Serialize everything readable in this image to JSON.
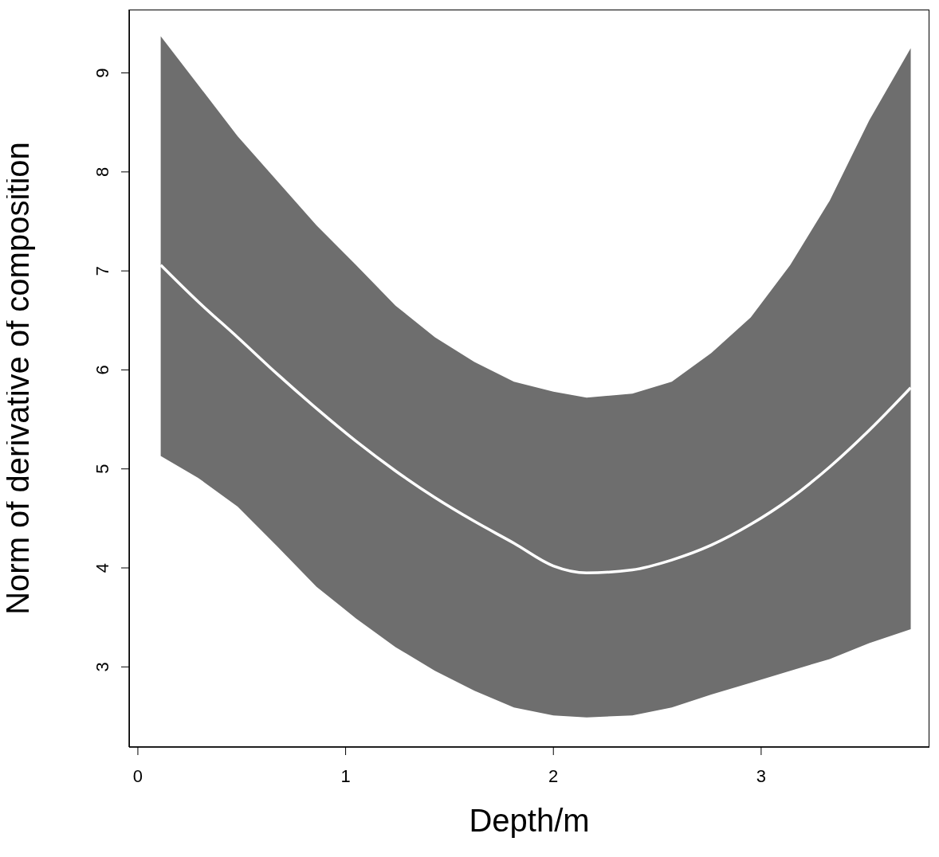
{
  "chart_data": {
    "type": "line",
    "xlabel": "Depth/m",
    "ylabel": "Norm of derivative of composition",
    "xlim": [
      -0.042,
      3.81
    ],
    "ylim": [
      2.19,
      9.64
    ],
    "xticks": [
      0,
      1,
      2,
      3
    ],
    "yticks": [
      3,
      4,
      5,
      6,
      7,
      8,
      9
    ],
    "grid": false,
    "legend": false,
    "marker": "none",
    "line_style": "solid",
    "x": [
      0.11,
      0.29,
      0.48,
      0.67,
      0.86,
      1.05,
      1.24,
      1.43,
      1.62,
      1.81,
      2.0,
      2.16,
      2.38,
      2.57,
      2.76,
      2.95,
      3.14,
      3.33,
      3.52,
      3.72
    ],
    "series": [
      {
        "color": "#ffffff",
        "values": [
          7.06,
          6.69,
          6.33,
          5.96,
          5.61,
          5.28,
          4.98,
          4.71,
          4.47,
          4.25,
          4.02,
          3.95,
          3.98,
          4.08,
          4.23,
          4.44,
          4.7,
          5.02,
          5.39,
          5.82
        ],
        "lower": [
          5.13,
          4.91,
          4.62,
          4.22,
          3.81,
          3.49,
          3.2,
          2.96,
          2.76,
          2.59,
          2.51,
          2.49,
          2.51,
          2.59,
          2.72,
          2.84,
          2.96,
          3.08,
          3.24,
          3.38
        ],
        "upper": [
          9.37,
          8.88,
          8.36,
          7.91,
          7.46,
          7.06,
          6.65,
          6.33,
          6.08,
          5.88,
          5.78,
          5.72,
          5.76,
          5.88,
          6.17,
          6.53,
          7.06,
          7.71,
          8.52,
          9.25
        ]
      }
    ]
  }
}
